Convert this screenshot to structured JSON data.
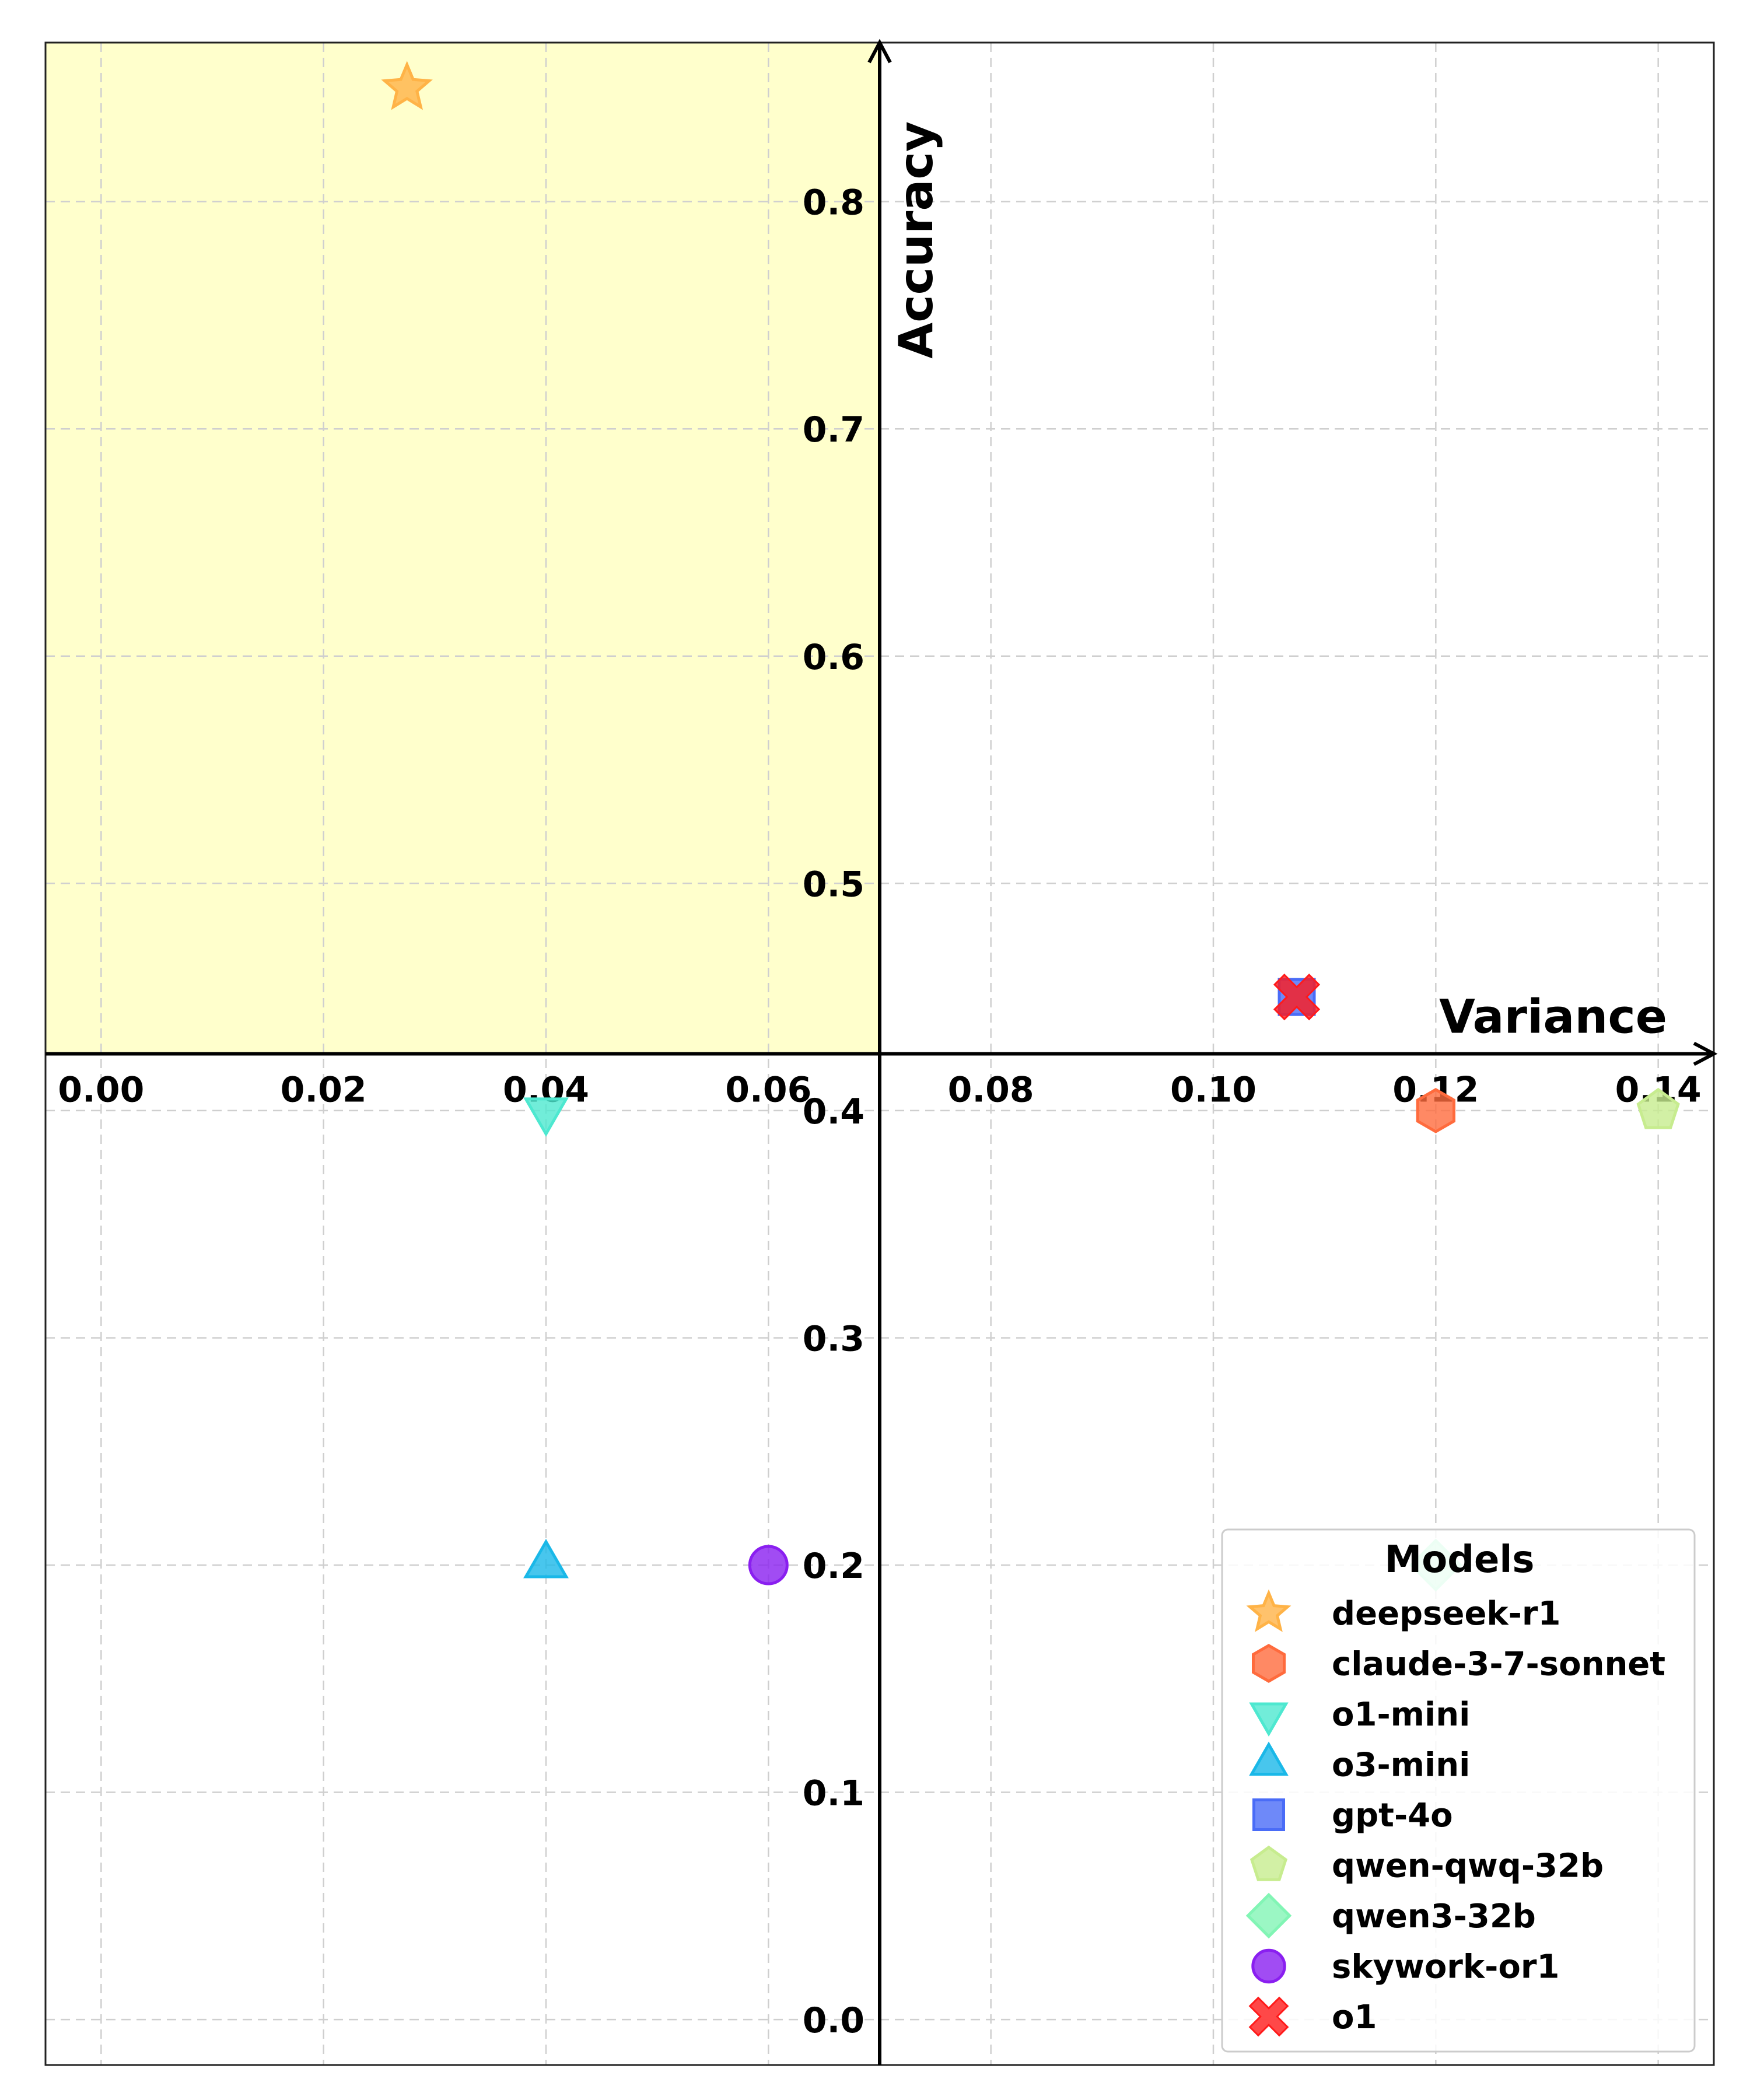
{
  "chart_data": {
    "type": "scatter",
    "xlabel": "Variance",
    "ylabel": "Accuracy",
    "xlim": [
      -0.005,
      0.145
    ],
    "ylim": [
      -0.02,
      0.87
    ],
    "x_origin": 0.07,
    "y_origin": 0.425,
    "grid": true,
    "x_ticks": [
      "0.00",
      "0.02",
      "0.04",
      "0.06",
      "0.08",
      "0.10",
      "0.12",
      "0.14"
    ],
    "y_ticks": [
      "0.0",
      "0.1",
      "0.2",
      "0.3",
      "0.4",
      "0.5",
      "0.6",
      "0.7",
      "0.8"
    ],
    "highlight_region": {
      "x": [
        -0.005,
        0.07
      ],
      "y": [
        0.425,
        0.87
      ],
      "color": "#ffffcc"
    },
    "legend": {
      "title": "Models",
      "position": "lower right"
    },
    "series": [
      {
        "name": "deepseek-r1",
        "marker": "star",
        "color": "#ffb347",
        "x": [
          0.0275
        ],
        "y": [
          0.85
        ]
      },
      {
        "name": "claude-3-7-sonnet",
        "marker": "hexagon",
        "color": "#ff6b3d",
        "x": [
          0.12
        ],
        "y": [
          0.4
        ]
      },
      {
        "name": "o1-mini",
        "marker": "triangle-down",
        "color": "#4ee8d0",
        "x": [
          0.04
        ],
        "y": [
          0.4
        ]
      },
      {
        "name": "o3-mini",
        "marker": "triangle-up",
        "color": "#1ab8e8",
        "x": [
          0.04
        ],
        "y": [
          0.2
        ]
      },
      {
        "name": "gpt-4o",
        "marker": "square",
        "color": "#4a6cf7",
        "x": [
          0.1075
        ],
        "y": [
          0.45
        ]
      },
      {
        "name": "qwen-qwq-32b",
        "marker": "pentagon",
        "color": "#c7ec8f",
        "x": [
          0.14
        ],
        "y": [
          0.4
        ]
      },
      {
        "name": "qwen3-32b",
        "marker": "diamond",
        "color": "#82f5b5",
        "x": [
          0.12
        ],
        "y": [
          0.2
        ]
      },
      {
        "name": "skywork-or1",
        "marker": "circle",
        "color": "#8a1ff0",
        "x": [
          0.06
        ],
        "y": [
          0.2
        ]
      },
      {
        "name": "o1",
        "marker": "x",
        "color": "#ff1a1a",
        "x": [
          0.1075
        ],
        "y": [
          0.45
        ]
      }
    ]
  }
}
